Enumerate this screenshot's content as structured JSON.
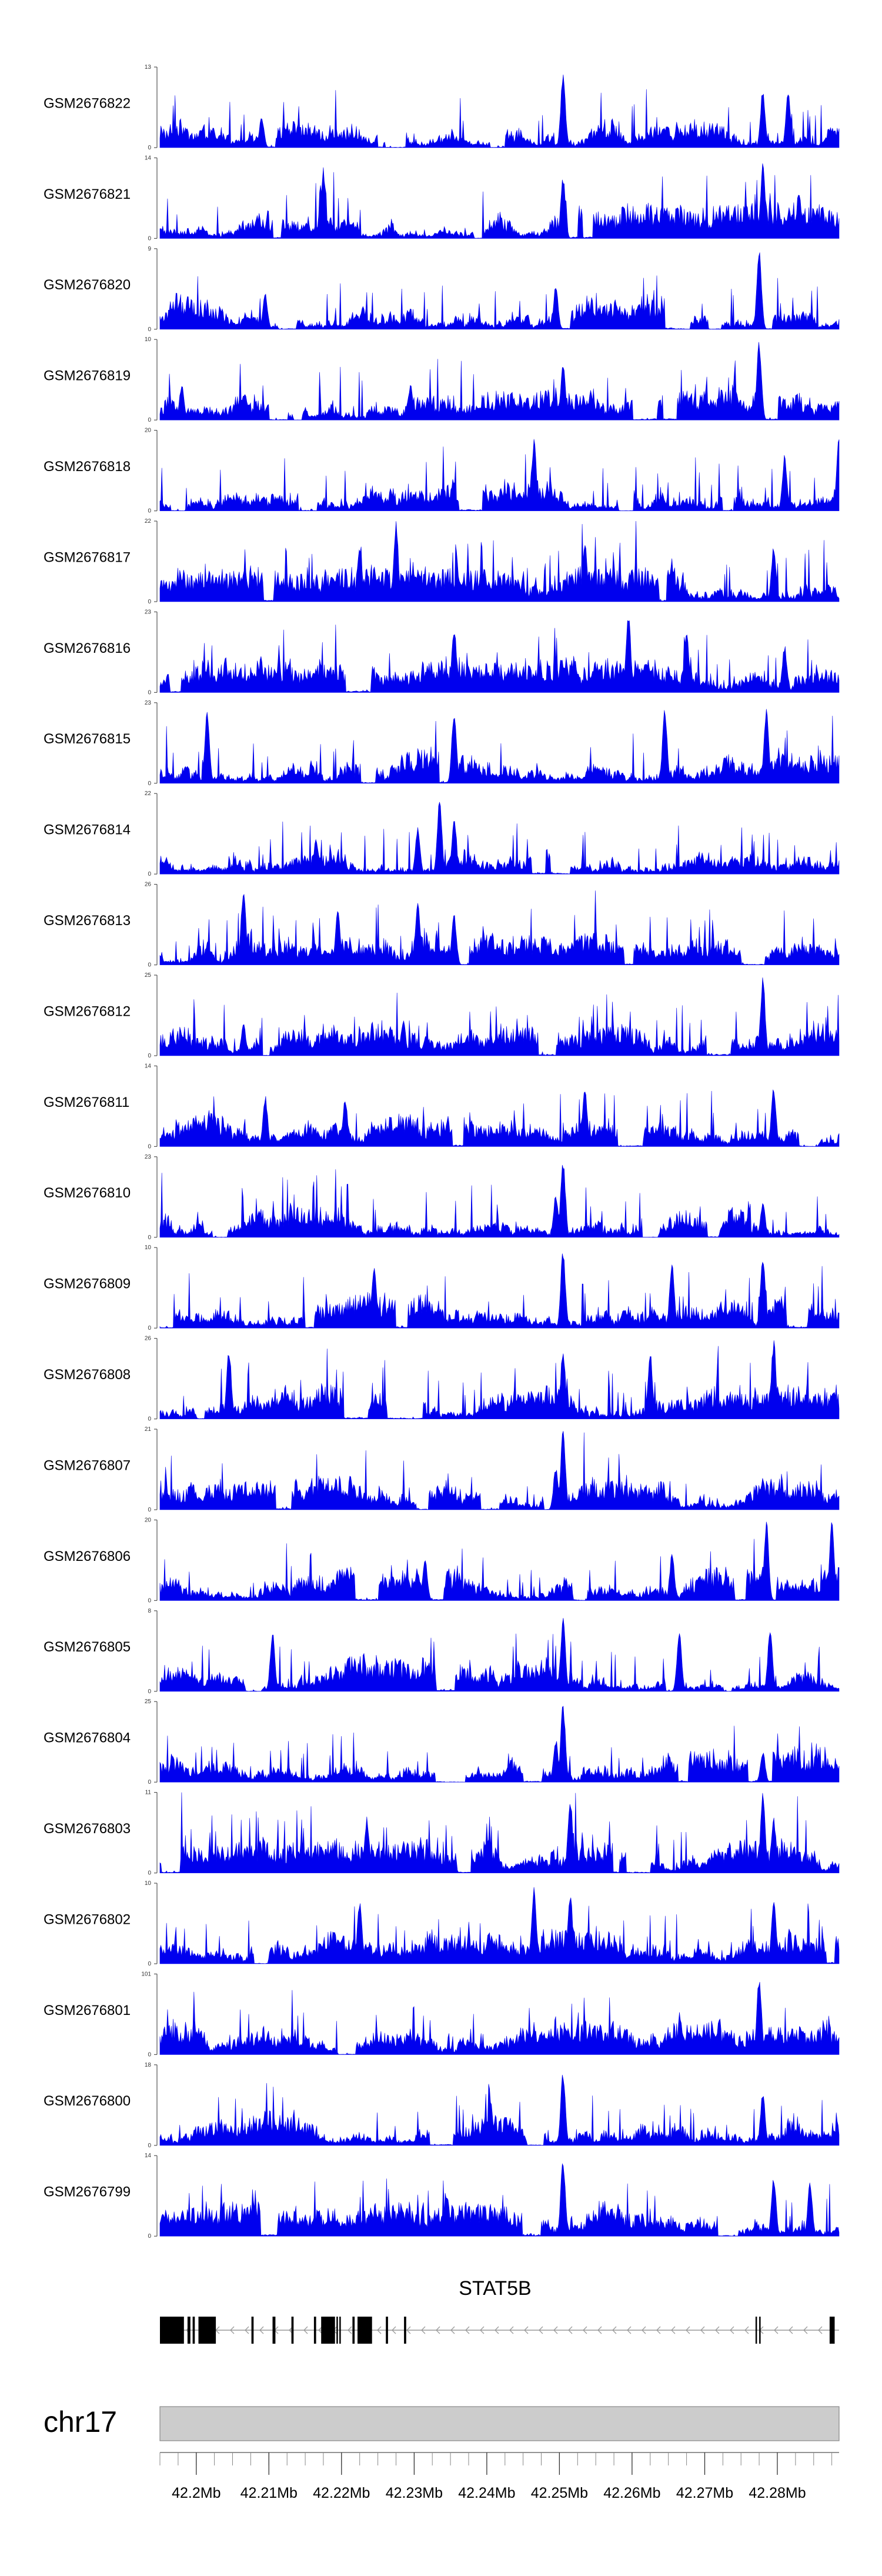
{
  "chart_data": {
    "type": "area",
    "title": "",
    "colors": {
      "coverage": "#0000ee",
      "axis": "#555555",
      "exon": "#000000",
      "intron": "#999999",
      "ideogram": "#cccccc",
      "ideogram_border": "#888888"
    },
    "genomic_range": [
      42.195,
      42.2885
    ],
    "tracks": [
      {
        "name": "GSM2676822",
        "ymax": 13,
        "peaks": [
          [
            42.2505,
            0.95
          ],
          [
            42.278,
            0.75
          ],
          [
            42.2815,
            0.7
          ],
          [
            42.209,
            0.4
          ]
        ]
      },
      {
        "name": "GSM2676821",
        "ymax": 14,
        "peaks": [
          [
            42.2175,
            0.9
          ],
          [
            42.2505,
            0.8
          ],
          [
            42.278,
            0.95
          ],
          [
            42.283,
            0.6
          ]
        ]
      },
      {
        "name": "GSM2676820",
        "ymax": 9,
        "peaks": [
          [
            42.2775,
            1.0
          ],
          [
            42.2495,
            0.55
          ],
          [
            42.2095,
            0.45
          ]
        ]
      },
      {
        "name": "GSM2676819",
        "ymax": 10,
        "peaks": [
          [
            42.2775,
            1.0
          ],
          [
            42.2505,
            0.75
          ],
          [
            42.198,
            0.45
          ],
          [
            42.2295,
            0.45
          ]
        ]
      },
      {
        "name": "GSM2676818",
        "ymax": 20,
        "peaks": [
          [
            42.2885,
            1.0
          ],
          [
            42.2465,
            0.9
          ],
          [
            42.281,
            0.7
          ]
        ]
      },
      {
        "name": "GSM2676817",
        "ymax": 22,
        "peaks": [
          [
            42.2275,
            1.0
          ],
          [
            42.2225,
            0.7
          ],
          [
            42.2535,
            0.75
          ],
          [
            42.2795,
            0.7
          ]
        ]
      },
      {
        "name": "GSM2676816",
        "ymax": 23,
        "peaks": [
          [
            42.2595,
            1.0
          ],
          [
            42.2675,
            0.8
          ],
          [
            42.2355,
            0.85
          ],
          [
            42.281,
            0.6
          ]
        ]
      },
      {
        "name": "GSM2676815",
        "ymax": 23,
        "peaks": [
          [
            42.2015,
            0.95
          ],
          [
            42.2355,
            0.95
          ],
          [
            42.2645,
            0.95
          ],
          [
            42.2785,
            0.95
          ]
        ]
      },
      {
        "name": "GSM2676814",
        "ymax": 22,
        "peaks": [
          [
            42.2335,
            0.95
          ],
          [
            42.2355,
            0.7
          ],
          [
            42.2305,
            0.6
          ],
          [
            42.2165,
            0.45
          ]
        ]
      },
      {
        "name": "GSM2676813",
        "ymax": 26,
        "peaks": [
          [
            42.2065,
            1.0
          ],
          [
            42.2305,
            0.85
          ],
          [
            42.2195,
            0.7
          ],
          [
            42.2355,
            0.65
          ]
        ]
      },
      {
        "name": "GSM2676812",
        "ymax": 25,
        "peaks": [
          [
            42.278,
            1.0
          ],
          [
            42.2285,
            0.45
          ],
          [
            42.2065,
            0.4
          ]
        ]
      },
      {
        "name": "GSM2676811",
        "ymax": 14,
        "peaks": [
          [
            42.2535,
            0.75
          ],
          [
            42.2795,
            0.75
          ],
          [
            42.2205,
            0.6
          ],
          [
            42.2095,
            0.65
          ]
        ]
      },
      {
        "name": "GSM2676810",
        "ymax": 23,
        "peaks": [
          [
            42.2505,
            1.0
          ],
          [
            42.278,
            0.45
          ],
          [
            42.2495,
            0.55
          ]
        ]
      },
      {
        "name": "GSM2676809",
        "ymax": 10,
        "peaks": [
          [
            42.2505,
            1.0
          ],
          [
            42.278,
            0.95
          ],
          [
            42.2655,
            0.85
          ],
          [
            42.2245,
            0.75
          ]
        ]
      },
      {
        "name": "GSM2676808",
        "ymax": 26,
        "peaks": [
          [
            42.2795,
            1.0
          ],
          [
            42.2505,
            0.9
          ],
          [
            42.2045,
            0.9
          ],
          [
            42.2625,
            0.85
          ]
        ]
      },
      {
        "name": "GSM2676807",
        "ymax": 21,
        "peaks": [
          [
            42.2505,
            1.0
          ],
          [
            42.278,
            0.4
          ],
          [
            42.2495,
            0.55
          ]
        ]
      },
      {
        "name": "GSM2676806",
        "ymax": 20,
        "peaks": [
          [
            42.2785,
            1.0
          ],
          [
            42.2875,
            1.0
          ],
          [
            42.2655,
            0.6
          ],
          [
            42.2315,
            0.55
          ]
        ]
      },
      {
        "name": "GSM2676805",
        "ymax": 8,
        "peaks": [
          [
            42.2505,
            0.95
          ],
          [
            42.279,
            0.8
          ],
          [
            42.2105,
            0.75
          ],
          [
            42.2665,
            0.75
          ]
        ]
      },
      {
        "name": "GSM2676804",
        "ymax": 25,
        "peaks": [
          [
            42.2505,
            1.0
          ],
          [
            42.278,
            0.4
          ],
          [
            42.2495,
            0.55
          ]
        ]
      },
      {
        "name": "GSM2676803",
        "ymax": 11,
        "peaks": [
          [
            42.278,
            1.0
          ],
          [
            42.2515,
            0.95
          ],
          [
            42.2795,
            0.7
          ],
          [
            42.2235,
            0.7
          ]
        ]
      },
      {
        "name": "GSM2676802",
        "ymax": 10,
        "peaks": [
          [
            42.2465,
            1.0
          ],
          [
            42.2515,
            0.9
          ],
          [
            42.2225,
            0.8
          ],
          [
            42.2795,
            0.8
          ]
        ]
      },
      {
        "name": "GSM2676801",
        "ymax": 101,
        "peaks": [
          [
            42.2775,
            1.0
          ],
          [
            42.2885,
            0.15
          ]
        ]
      },
      {
        "name": "GSM2676800",
        "ymax": 18,
        "peaks": [
          [
            42.2505,
            0.95
          ],
          [
            42.278,
            0.7
          ],
          [
            42.2405,
            0.6
          ],
          [
            42.2095,
            0.45
          ]
        ]
      },
      {
        "name": "GSM2676799",
        "ymax": 14,
        "peaks": [
          [
            42.2505,
            1.0
          ],
          [
            42.2795,
            0.75
          ],
          [
            42.2845,
            0.7
          ],
          [
            42.2345,
            0.55
          ]
        ]
      }
    ],
    "gene": {
      "name": "STAT5B",
      "strand": "-",
      "start": 42.195,
      "end": 42.2885,
      "exons": [
        [
          42.195,
          42.1983
        ],
        [
          42.1988,
          42.1992
        ],
        [
          42.1995,
          42.1998
        ],
        [
          42.2003,
          42.2027
        ],
        [
          42.2076,
          42.2079
        ],
        [
          42.2105,
          42.2109
        ],
        [
          42.2131,
          42.2134
        ],
        [
          42.2162,
          42.2165
        ],
        [
          42.2172,
          42.2191
        ],
        [
          42.2193,
          42.2195
        ],
        [
          42.2197,
          42.2199
        ],
        [
          42.2215,
          42.2218
        ],
        [
          42.2222,
          42.2242
        ],
        [
          42.2261,
          42.2264
        ],
        [
          42.2286,
          42.2289
        ],
        [
          42.277,
          42.2772
        ],
        [
          42.2775,
          42.2777
        ],
        [
          42.2872,
          42.2879
        ]
      ]
    },
    "chromosome": "chr17",
    "axis": {
      "major_ticks": [
        42.2,
        42.21,
        42.22,
        42.23,
        42.24,
        42.25,
        42.26,
        42.27,
        42.28
      ],
      "tick_labels": [
        "42.2Mb",
        "42.21Mb",
        "42.22Mb",
        "42.23Mb",
        "42.24Mb",
        "42.25Mb",
        "42.26Mb",
        "42.27Mb",
        "42.28Mb"
      ],
      "minor_step": 0.0025
    }
  }
}
